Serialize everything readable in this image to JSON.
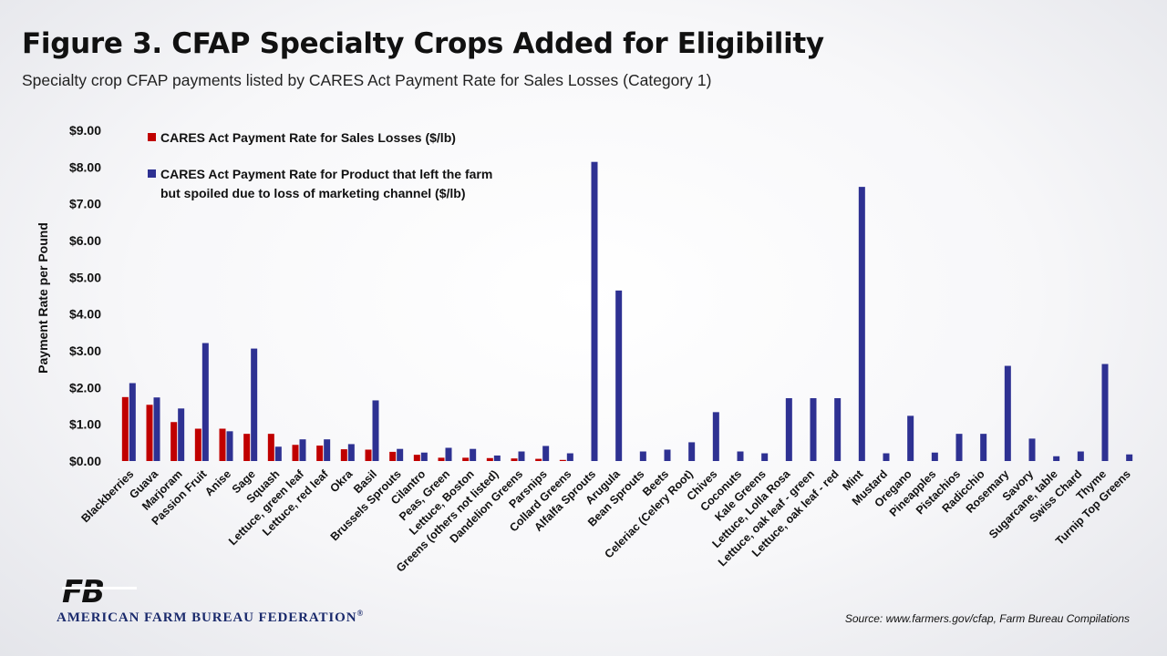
{
  "title": "Figure 3. CFAP Specialty Crops Added for Eligibility",
  "subtitle": "Specialty crop CFAP payments listed by CARES Act Payment Rate for Sales Losses (Category 1)",
  "org_name": "AMERICAN FARM BUREAU FEDERATION",
  "org_mark": "®",
  "logo_text": "FB",
  "source": "Source: www.farmers.gov/cfap, Farm Bureau Compilations",
  "colors": {
    "sales": "#c00000",
    "spoiled": "#2e3192",
    "brand": "#1a2a6c"
  },
  "chart_data": {
    "type": "bar",
    "ylabel": "Payment Rate per Pound",
    "ylim": [
      0,
      9
    ],
    "y_ticks": [
      "$0.00",
      "$1.00",
      "$2.00",
      "$3.00",
      "$4.00",
      "$5.00",
      "$6.00",
      "$7.00",
      "$8.00",
      "$9.00"
    ],
    "grid": false,
    "legend_position": "top-left",
    "categories": [
      "Blackberries",
      "Guava",
      "Marjoram",
      "Passion Fruit",
      "Anise",
      "Sage",
      "Squash",
      "Lettuce, green leaf",
      "Lettuce, red leaf",
      "Okra",
      "Basil",
      "Brussels Sprouts",
      "Cilantro",
      "Peas, Green",
      "Lettuce, Boston",
      "Greens (others not listed)",
      "Dandelion Greens",
      "Parsnips",
      "Collard Greens",
      "Alfalfa Sprouts",
      "Arugula",
      "Bean Sprouts",
      "Beets",
      "Celeriac (Celery Root)",
      "Chives",
      "Coconuts",
      "Kale Greens",
      "Lettuce, Lolla Rosa",
      "Lettuce, oak leaf - green",
      "Lettuce, oak leaf - red",
      "Mint",
      "Mustard",
      "Oregano",
      "Pineapples",
      "Pistachios",
      "Radicchio",
      "Rosemary",
      "Savory",
      "Sugarcane, table",
      "Swiss Chard",
      "Thyme",
      "Turnip Top Greens"
    ],
    "series": [
      {
        "name": "CARES Act Payment Rate for Sales Losses ($/lb)",
        "values": [
          1.74,
          1.53,
          1.06,
          0.88,
          0.88,
          0.74,
          0.74,
          0.44,
          0.42,
          0.32,
          0.31,
          0.25,
          0.17,
          0.09,
          0.09,
          0.08,
          0.07,
          0.06,
          0.03,
          0,
          0,
          0,
          0,
          0,
          0,
          0,
          0,
          0,
          0,
          0,
          0,
          0,
          0,
          0,
          0,
          0,
          0,
          0,
          0,
          0,
          0,
          0
        ]
      },
      {
        "name": "CARES Act Payment Rate for Product that left the farm but spoiled due to loss of marketing channel ($/lb)",
        "values": [
          2.12,
          1.73,
          1.43,
          3.21,
          0.81,
          3.06,
          0.39,
          0.59,
          0.59,
          0.46,
          1.65,
          0.33,
          0.23,
          0.36,
          0.33,
          0.15,
          0.26,
          0.41,
          0.21,
          8.14,
          4.64,
          0.26,
          0.31,
          0.51,
          1.33,
          0.26,
          0.21,
          1.71,
          1.71,
          1.71,
          7.46,
          0.21,
          1.23,
          0.23,
          0.74,
          0.74,
          2.59,
          0.61,
          0.13,
          0.26,
          2.64,
          0.18
        ]
      }
    ]
  }
}
